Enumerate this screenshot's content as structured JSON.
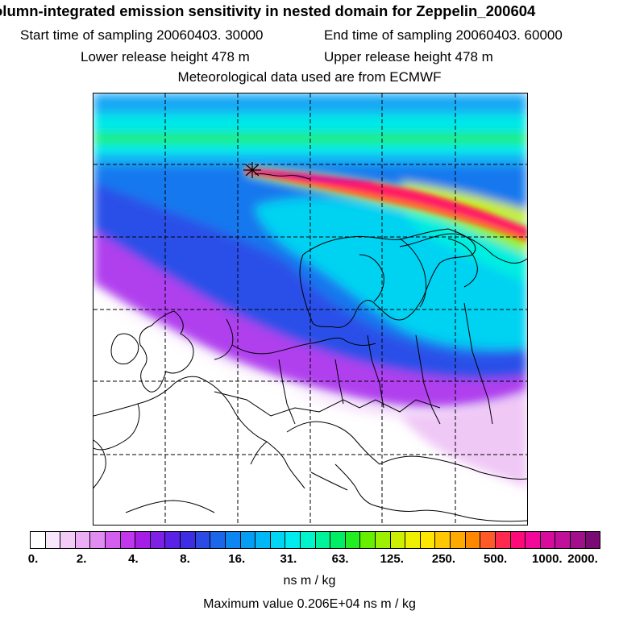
{
  "header": {
    "title": "olumn-integrated emission sensitivity in nested domain for Zeppelin_200604",
    "start_time": "Start time of sampling 20060403. 30000",
    "end_time": "End time of sampling 20060403. 60000",
    "lower_height": "Lower release height  478 m",
    "upper_height": "Upper release height  478 m",
    "met_source": "Meteorological data used are from ECMWF"
  },
  "legend": {
    "ticks": [
      "0.",
      "2.",
      "4.",
      "8.",
      "16.",
      "31.",
      "63.",
      "125.",
      "250.",
      "500.",
      "1000.",
      "2000."
    ],
    "unit": "ns m / kg",
    "colors": [
      "#ffffff",
      "#f8e6fa",
      "#f2cbf6",
      "#ebaef4",
      "#e08cf1",
      "#d45ef0",
      "#c236ed",
      "#a51ee8",
      "#7f20e6",
      "#5a22e4",
      "#3d2ee4",
      "#2c4ae6",
      "#1c66ea",
      "#0c86f0",
      "#049ef4",
      "#00b8f6",
      "#00d6f4",
      "#00ecee",
      "#00f4cc",
      "#00f29a",
      "#00ee66",
      "#22ee22",
      "#66f000",
      "#9cf000",
      "#ccf000",
      "#eef000",
      "#ffe600",
      "#ffc800",
      "#ffaa00",
      "#ff8800",
      "#ff5a28",
      "#ff2a4e",
      "#ff0a78",
      "#f2089a",
      "#d80c9c",
      "#c0109a",
      "#a20e8c",
      "#7a0a74"
    ]
  },
  "map": {
    "max_value_label": "Maximum value  0.206E+04 ns m / kg",
    "release_marker": "release-site-marker"
  }
}
